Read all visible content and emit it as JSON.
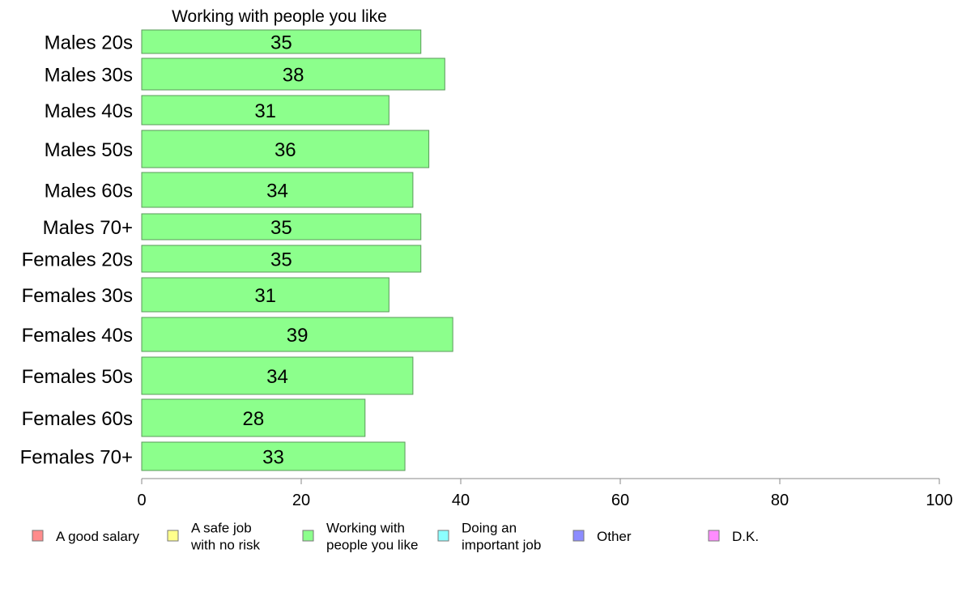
{
  "chart_data": {
    "type": "bar",
    "orientation": "horizontal",
    "title": "Working with people you like",
    "categories": [
      "Males 20s",
      "Males 30s",
      "Males 40s",
      "Males 50s",
      "Males 60s",
      "Males 70+",
      "Females 20s",
      "Females 30s",
      "Females 40s",
      "Females 50s",
      "Females 60s",
      "Females 70+"
    ],
    "values": [
      35,
      38,
      31,
      36,
      34,
      35,
      35,
      31,
      39,
      34,
      28,
      33
    ],
    "value_labels": [
      "35",
      "38",
      "31",
      "36",
      "34",
      "35",
      "35",
      "31",
      "39",
      "34",
      "28",
      "33"
    ],
    "xlim": [
      0,
      100
    ],
    "xticks": [
      0,
      20,
      40,
      60,
      80,
      100
    ],
    "xtick_labels": [
      "0",
      "20",
      "40",
      "60",
      "80",
      "100"
    ],
    "bar_color": "#8cff8c",
    "bar_edge_color": "#5a9a5a",
    "grid": false,
    "legend_position": "bottom",
    "legend": [
      {
        "label": [
          "A good salary"
        ],
        "color": "#ff8c8c"
      },
      {
        "label": [
          "A safe job",
          "with no risk"
        ],
        "color": "#ffff8c"
      },
      {
        "label": [
          "Working with",
          "people you like"
        ],
        "color": "#8cff8c"
      },
      {
        "label": [
          "Doing an",
          "important job"
        ],
        "color": "#8cffff"
      },
      {
        "label": [
          "Other"
        ],
        "color": "#8c8cff"
      },
      {
        "label": [
          "D.K."
        ],
        "color": "#ff8cff"
      }
    ]
  }
}
